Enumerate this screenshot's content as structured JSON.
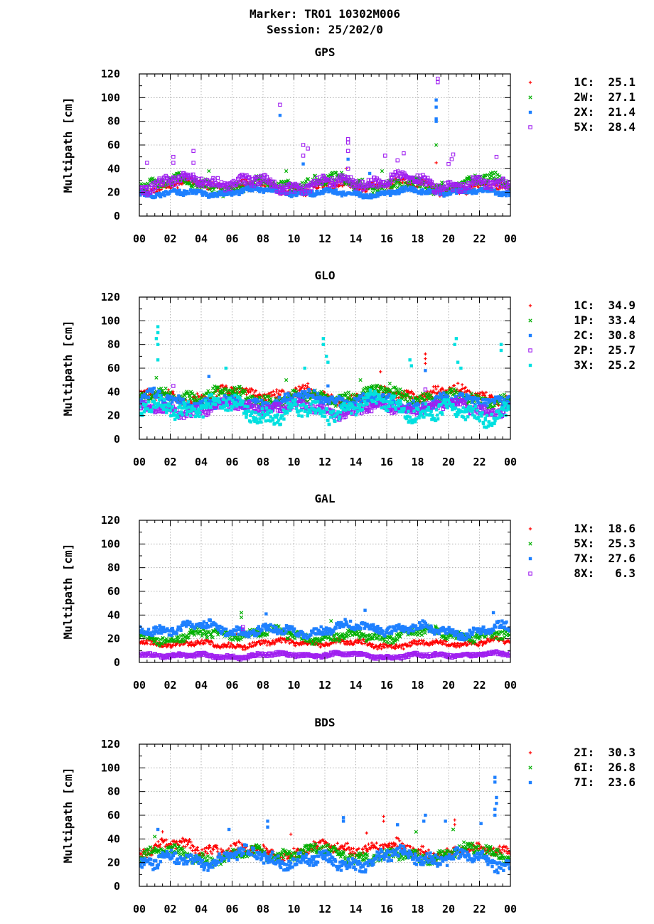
{
  "figure": {
    "title_line1": "Marker: TRO1 10302M006",
    "title_line2": "Session: 25/202/0"
  },
  "chart_data": [
    {
      "type": "scatter",
      "title": "GPS",
      "ylabel": "Multipath [cm]",
      "xlabel": "",
      "xlim": [
        0,
        24
      ],
      "ylim": [
        0,
        120
      ],
      "xticks": [
        "00",
        "02",
        "04",
        "06",
        "08",
        "10",
        "12",
        "14",
        "16",
        "18",
        "20",
        "22",
        "00"
      ],
      "yticks": [
        0,
        20,
        40,
        60,
        80,
        100,
        120
      ],
      "grid": true,
      "legend_position": "right",
      "series": [
        {
          "name": "1C",
          "rms": "25.1",
          "color": "#ff0000",
          "marker": "plus",
          "base": 25,
          "spread": 5,
          "spikes": [
            [
              13.4,
              40
            ],
            [
              19.2,
              45
            ]
          ]
        },
        {
          "name": "2W",
          "rms": "27.1",
          "color": "#00b000",
          "marker": "cross",
          "base": 27,
          "spread": 6,
          "spikes": [
            [
              19.2,
              60
            ],
            [
              4.5,
              38
            ],
            [
              9.5,
              38
            ],
            [
              15.7,
              38
            ]
          ]
        },
        {
          "name": "2X",
          "rms": "21.4",
          "color": "#1e80ff",
          "marker": "square",
          "base": 20,
          "spread": 3,
          "spikes": [
            [
              9.1,
              85
            ],
            [
              19.2,
              98
            ],
            [
              19.2,
              92
            ],
            [
              19.2,
              82
            ],
            [
              19.2,
              80
            ],
            [
              13.5,
              48
            ],
            [
              10.6,
              44
            ],
            [
              14.9,
              36
            ]
          ]
        },
        {
          "name": "5X",
          "rms": "28.4",
          "color": "#a020f0",
          "marker": "open-square",
          "base": 28,
          "spread": 6,
          "spikes": [
            [
              9.1,
              94
            ],
            [
              19.3,
              116
            ],
            [
              19.3,
              113
            ],
            [
              13.5,
              65
            ],
            [
              13.5,
              62
            ],
            [
              13.5,
              55
            ],
            [
              10.6,
              60
            ],
            [
              10.9,
              57
            ],
            [
              10.6,
              51
            ],
            [
              3.5,
              55
            ],
            [
              2.2,
              50
            ],
            [
              2.2,
              45
            ],
            [
              0.5,
              45
            ],
            [
              15.9,
              51
            ],
            [
              17.1,
              53
            ],
            [
              16.7,
              47
            ],
            [
              20.3,
              52
            ],
            [
              20.2,
              48
            ],
            [
              20,
              44
            ],
            [
              23.1,
              50
            ],
            [
              3.5,
              45
            ],
            [
              13.5,
              40
            ]
          ]
        }
      ]
    },
    {
      "type": "scatter",
      "title": "GLO",
      "ylabel": "Multipath [cm]",
      "xlabel": "",
      "xlim": [
        0,
        24
      ],
      "ylim": [
        0,
        120
      ],
      "xticks": [
        "00",
        "02",
        "04",
        "06",
        "08",
        "10",
        "12",
        "14",
        "16",
        "18",
        "20",
        "22",
        "00"
      ],
      "yticks": [
        0,
        20,
        40,
        60,
        80,
        100,
        120
      ],
      "grid": true,
      "legend_position": "right",
      "series": [
        {
          "name": "1C",
          "rms": "34.9",
          "color": "#ff0000",
          "marker": "plus",
          "base": 37,
          "spread": 6,
          "spikes": [
            [
              18.5,
              72
            ],
            [
              18.5,
              68
            ],
            [
              18.5,
              64
            ],
            [
              10.9,
              47
            ],
            [
              15.6,
              57
            ]
          ]
        },
        {
          "name": "1P",
          "rms": "33.4",
          "color": "#00b000",
          "marker": "cross",
          "base": 36,
          "spread": 6,
          "spikes": [
            [
              1.1,
              52
            ],
            [
              9.5,
              50
            ],
            [
              14.3,
              50
            ],
            [
              16.2,
              47
            ]
          ]
        },
        {
          "name": "2C",
          "rms": "30.8",
          "color": "#1e80ff",
          "marker": "square",
          "base": 32,
          "spread": 6,
          "spikes": [
            [
              4.5,
              53
            ],
            [
              18.5,
              58
            ],
            [
              12.2,
              45
            ]
          ]
        },
        {
          "name": "2P",
          "rms": "25.7",
          "color": "#a020f0",
          "marker": "open-square",
          "base": 26,
          "spread": 5,
          "spikes": [
            [
              2.2,
              45
            ],
            [
              18.5,
              42
            ]
          ]
        },
        {
          "name": "3X",
          "rms": "25.2",
          "color": "#00e0e0",
          "marker": "square",
          "base": 25,
          "spread": 9,
          "spikes": [
            [
              1.2,
              95
            ],
            [
              1.2,
              90
            ],
            [
              1.1,
              85
            ],
            [
              1.2,
              80
            ],
            [
              1.2,
              67
            ],
            [
              11.9,
              85
            ],
            [
              11.9,
              80
            ],
            [
              12.1,
              70
            ],
            [
              12.2,
              65
            ],
            [
              20.5,
              85
            ],
            [
              20.4,
              80
            ],
            [
              20.6,
              65
            ],
            [
              20.8,
              60
            ],
            [
              23.4,
              80
            ],
            [
              23.4,
              75
            ],
            [
              17.5,
              67
            ],
            [
              17.6,
              62
            ],
            [
              10.7,
              60
            ],
            [
              5.6,
              60
            ]
          ]
        }
      ]
    },
    {
      "type": "scatter",
      "title": "GAL",
      "ylabel": "Multipath [cm]",
      "xlabel": "",
      "xlim": [
        0,
        24
      ],
      "ylim": [
        0,
        120
      ],
      "xticks": [
        "00",
        "02",
        "04",
        "06",
        "08",
        "10",
        "12",
        "14",
        "16",
        "18",
        "20",
        "22",
        "00"
      ],
      "yticks": [
        0,
        20,
        40,
        60,
        80,
        100,
        120
      ],
      "grid": true,
      "legend_position": "right",
      "series": [
        {
          "name": "1X",
          "rms": "18.6",
          "color": "#ff0000",
          "marker": "plus",
          "base": 16,
          "spread": 3,
          "spikes": [
            [
              6.3,
              24
            ],
            [
              12.5,
              23
            ]
          ]
        },
        {
          "name": "5X",
          "rms": "25.3",
          "color": "#00b000",
          "marker": "cross",
          "base": 23,
          "spread": 5,
          "spikes": [
            [
              6.6,
              42
            ],
            [
              6.6,
              38
            ],
            [
              12.4,
              35
            ]
          ]
        },
        {
          "name": "7X",
          "rms": "27.6",
          "color": "#1e80ff",
          "marker": "square",
          "base": 28,
          "spread": 5,
          "spikes": [
            [
              14.6,
              44
            ],
            [
              22.9,
              42
            ],
            [
              8.2,
              41
            ]
          ]
        },
        {
          "name": "8X",
          "rms": "6.3",
          "color": "#a020f0",
          "marker": "open-square",
          "base": 6,
          "spread": 2,
          "spikes": [
            [
              6.7,
              30
            ],
            [
              6.7,
              28
            ]
          ]
        }
      ]
    },
    {
      "type": "scatter",
      "title": "BDS",
      "ylabel": "Multipath [cm]",
      "xlabel": "",
      "xlim": [
        0,
        24
      ],
      "ylim": [
        0,
        120
      ],
      "xticks": [
        "00",
        "02",
        "04",
        "06",
        "08",
        "10",
        "12",
        "14",
        "16",
        "18",
        "20",
        "22",
        "00"
      ],
      "yticks": [
        0,
        20,
        40,
        60,
        80,
        100,
        120
      ],
      "grid": true,
      "legend_position": "right",
      "series": [
        {
          "name": "2I",
          "rms": "30.3",
          "color": "#ff0000",
          "marker": "plus",
          "base": 31,
          "spread": 6,
          "spikes": [
            [
              15.8,
              59
            ],
            [
              15.8,
              55
            ],
            [
              20.4,
              56
            ],
            [
              20.4,
              52
            ],
            [
              1.5,
              46
            ],
            [
              14.7,
              45
            ],
            [
              9.8,
              44
            ]
          ]
        },
        {
          "name": "6I",
          "rms": "26.8",
          "color": "#00b000",
          "marker": "cross",
          "base": 27,
          "spread": 6,
          "spikes": [
            [
              17.9,
              46
            ],
            [
              1,
              42
            ],
            [
              20.3,
              48
            ]
          ]
        },
        {
          "name": "7I",
          "rms": "23.6",
          "color": "#1e80ff",
          "marker": "square",
          "base": 23,
          "spread": 7,
          "spikes": [
            [
              23,
              92
            ],
            [
              23,
              88
            ],
            [
              23.1,
              75
            ],
            [
              23.1,
              70
            ],
            [
              23,
              65
            ],
            [
              23,
              60
            ],
            [
              18.5,
              60
            ],
            [
              18.4,
              55
            ],
            [
              13.2,
              58
            ],
            [
              13.2,
              55
            ],
            [
              8.3,
              55
            ],
            [
              8.3,
              50
            ],
            [
              5.8,
              48
            ],
            [
              1.2,
              48
            ],
            [
              22.1,
              53
            ],
            [
              19.8,
              55
            ],
            [
              16.7,
              52
            ]
          ]
        }
      ]
    }
  ]
}
